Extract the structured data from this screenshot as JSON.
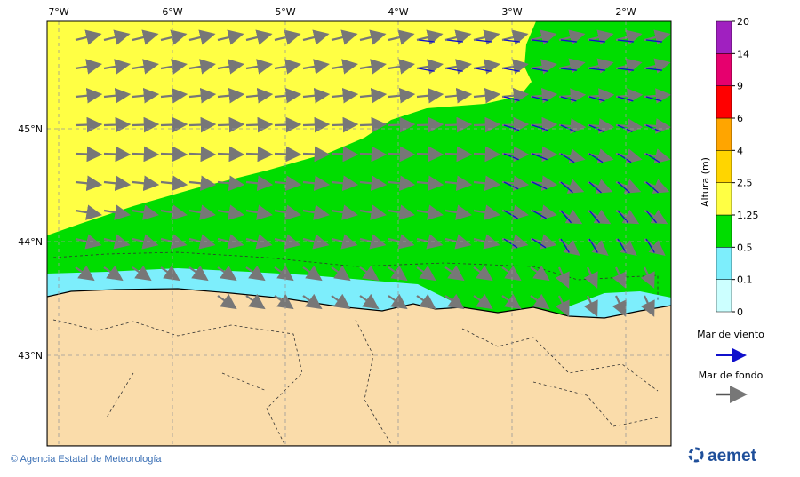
{
  "map": {
    "lon_labels": [
      "7°W",
      "6°W",
      "5°W",
      "4°W",
      "3°W",
      "2°W"
    ],
    "lat_labels": [
      "45°N",
      "44°N",
      "43°N"
    ]
  },
  "colorbar": {
    "label": "Altura (m)",
    "ticks": [
      0,
      0.1,
      0.5,
      1.25,
      2.5,
      4,
      6,
      9,
      14,
      20
    ],
    "colors": [
      "#ccffff",
      "#7deefc",
      "#00dd00",
      "#ffff44",
      "#ffd500",
      "#ffa500",
      "#ff0000",
      "#e6006e",
      "#a020c0"
    ]
  },
  "legend": {
    "wind_sea": "Mar de viento",
    "swell": "Mar de fondo"
  },
  "footer": {
    "credit": "© Agencia Estatal de Meteorología",
    "logo": "aemet"
  }
}
